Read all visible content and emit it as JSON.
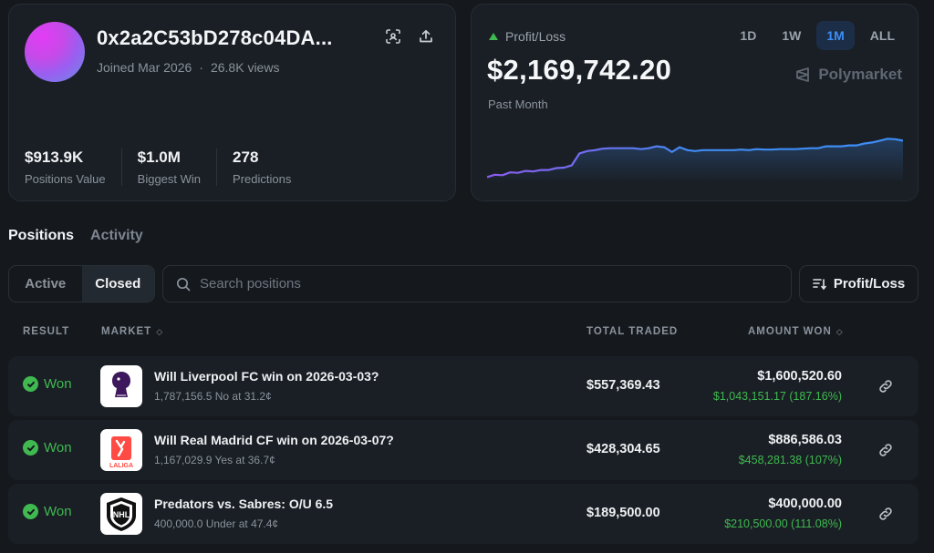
{
  "profile": {
    "name": "0x2a2C53bD278c04DA...",
    "joined": "Joined Mar 2026",
    "views": "26.8K views",
    "stats": [
      {
        "value": "$913.9K",
        "label": "Positions Value"
      },
      {
        "value": "$1.0M",
        "label": "Biggest Win"
      },
      {
        "value": "278",
        "label": "Predictions"
      }
    ]
  },
  "pnl": {
    "label": "Profit/Loss",
    "value": "$2,169,742.20",
    "period": "Past Month",
    "ranges": [
      "1D",
      "1W",
      "1M",
      "ALL"
    ],
    "active_range": "1M",
    "brand": "Polymarket",
    "chart_points": [
      0.05,
      0.1,
      0.09,
      0.15,
      0.14,
      0.18,
      0.17,
      0.2,
      0.2,
      0.24,
      0.25,
      0.3,
      0.55,
      0.6,
      0.62,
      0.65,
      0.66,
      0.66,
      0.66,
      0.66,
      0.64,
      0.66,
      0.7,
      0.68,
      0.58,
      0.68,
      0.62,
      0.6,
      0.62,
      0.62,
      0.62,
      0.62,
      0.62,
      0.63,
      0.62,
      0.64,
      0.63,
      0.63,
      0.64,
      0.64,
      0.64,
      0.65,
      0.66,
      0.66,
      0.7,
      0.7,
      0.7,
      0.72,
      0.72,
      0.76,
      0.78,
      0.82,
      0.86,
      0.85,
      0.82
    ]
  },
  "tabs": {
    "positions": "Positions",
    "activity": "Activity"
  },
  "filter": {
    "active": "Active",
    "closed": "Closed"
  },
  "search": {
    "placeholder": "Search positions"
  },
  "sort": {
    "label": "Profit/Loss"
  },
  "table": {
    "headers": {
      "result": "RESULT",
      "market": "MARKET",
      "total_traded": "TOTAL TRADED",
      "amount_won": "AMOUNT WON"
    },
    "rows": [
      {
        "result": "Won",
        "title": "Will Liverpool FC win on 2026-03-03?",
        "sub": "1,787,156.5 No at 31.2¢",
        "total": "$557,369.43",
        "amount": "$1,600,520.60",
        "profit": "$1,043,151.17 (187.16%)",
        "logo": "premier-league-logo"
      },
      {
        "result": "Won",
        "title": "Will Real Madrid CF win on 2026-03-07?",
        "sub": "1,167,029.9 Yes at 36.7¢",
        "total": "$428,304.65",
        "amount": "$886,586.03",
        "profit": "$458,281.38 (107%)",
        "logo": "laliga-logo",
        "logo_text": "LALIGA"
      },
      {
        "result": "Won",
        "title": "Predators vs. Sabres: O/U 6.5",
        "sub": "400,000.0 Under at 47.4¢",
        "total": "$189,500.00",
        "amount": "$400,000.00",
        "profit": "$210,500.00 (111.08%)",
        "logo": "nhl-logo",
        "logo_text": "NHL"
      }
    ]
  },
  "colors": {
    "accent": "#3d8df5",
    "positive": "#3fb950",
    "background": "#15191e",
    "card": "#1a1f25"
  }
}
